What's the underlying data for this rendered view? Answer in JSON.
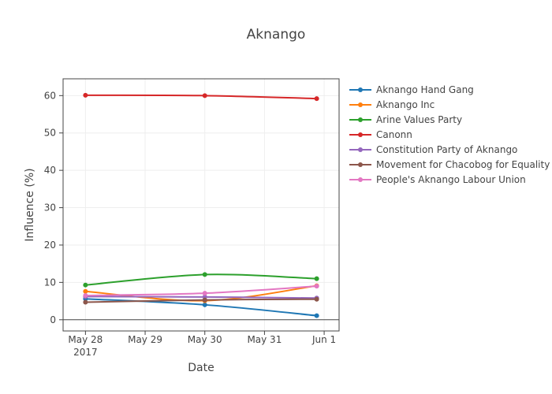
{
  "chart_data": {
    "type": "line",
    "title": "Aknango",
    "xlabel": "Date",
    "ylabel": "Influence (%)",
    "x": [
      "2017-05-28",
      "2017-05-30",
      "2017-05-31 21:00"
    ],
    "x_ticks": [
      {
        "date": "2017-05-28",
        "label": "May 28",
        "sublabel": "2017"
      },
      {
        "date": "2017-05-29",
        "label": "May 29",
        "sublabel": ""
      },
      {
        "date": "2017-05-30",
        "label": "May 30",
        "sublabel": ""
      },
      {
        "date": "2017-05-31",
        "label": "May 31",
        "sublabel": ""
      },
      {
        "date": "2017-06-01",
        "label": "Jun 1",
        "sublabel": ""
      }
    ],
    "xlim": [
      "2017-05-27 15:00",
      "2017-06-01 06:00"
    ],
    "ylim": [
      -3,
      64.5
    ],
    "y_ticks": [
      0,
      10,
      20,
      30,
      40,
      50,
      60
    ],
    "grid": true,
    "legend_position": "right",
    "series": [
      {
        "name": "Aknango Hand Gang",
        "color": "#1f77b4",
        "values": [
          5.6,
          4.0,
          1.1
        ]
      },
      {
        "name": "Aknango Inc",
        "color": "#ff7f0e",
        "values": [
          7.6,
          5.1,
          9.1
        ]
      },
      {
        "name": "Arine Values Party",
        "color": "#2ca02c",
        "values": [
          9.3,
          12.1,
          11.0
        ]
      },
      {
        "name": "Canonn",
        "color": "#d62728",
        "values": [
          60.1,
          60.0,
          59.2
        ]
      },
      {
        "name": "Constitution Party of Aknango",
        "color": "#9467bd",
        "values": [
          6.2,
          6.1,
          5.8
        ]
      },
      {
        "name": "Movement for Chacobog for Equality",
        "color": "#8c564b",
        "values": [
          4.7,
          5.3,
          5.5
        ]
      },
      {
        "name": "People's Aknango Labour Union",
        "color": "#e377c2",
        "values": [
          6.5,
          7.1,
          9.0
        ]
      }
    ]
  }
}
